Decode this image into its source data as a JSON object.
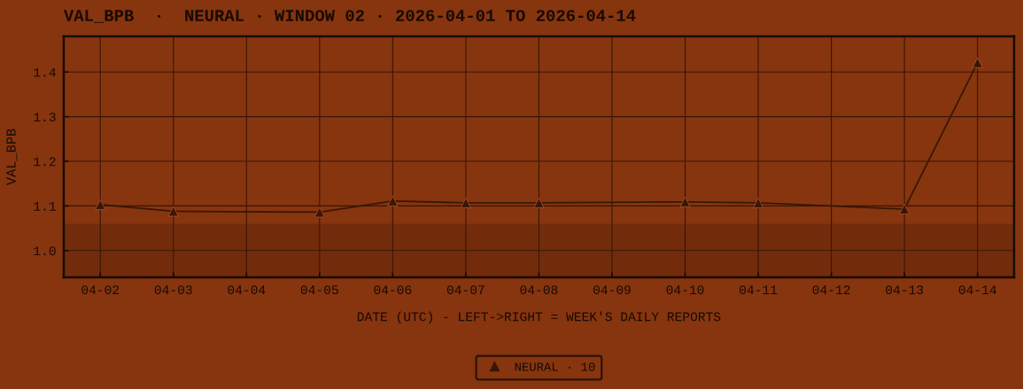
{
  "chart_data": {
    "type": "line",
    "title": "VAL_BPB  ·  NEURAL · WINDOW 02 · 2026-04-01 TO 2026-04-14",
    "xlabel": "DATE (UTC) - LEFT->RIGHT = WEEK'S DAILY REPORTS",
    "ylabel": "VAL_BPB",
    "x": [
      "2026-04-02",
      "2026-04-03",
      "2026-04-05",
      "2026-04-06",
      "2026-04-07",
      "2026-04-08",
      "2026-04-10",
      "2026-04-11",
      "2026-04-13",
      "2026-04-14"
    ],
    "series": [
      {
        "name": "NEURAL · 10",
        "color": "#3a1606",
        "values": [
          1.103,
          1.088,
          1.086,
          1.111,
          1.107,
          1.107,
          1.109,
          1.107,
          1.093,
          1.421
        ]
      }
    ],
    "xlim": [
      "2026-04-01T12:00",
      "2026-04-14T12:00"
    ],
    "xticks": [
      {
        "value": "2026-04-02",
        "label": "04-02"
      },
      {
        "value": "2026-04-03",
        "label": "04-03"
      },
      {
        "value": "2026-04-04",
        "label": "04-04"
      },
      {
        "value": "2026-04-05",
        "label": "04-05"
      },
      {
        "value": "2026-04-06",
        "label": "04-06"
      },
      {
        "value": "2026-04-07",
        "label": "04-07"
      },
      {
        "value": "2026-04-08",
        "label": "04-08"
      },
      {
        "value": "2026-04-09",
        "label": "04-09"
      },
      {
        "value": "2026-04-10",
        "label": "04-10"
      },
      {
        "value": "2026-04-11",
        "label": "04-11"
      },
      {
        "value": "2026-04-12",
        "label": "04-12"
      },
      {
        "value": "2026-04-13",
        "label": "04-13"
      },
      {
        "value": "2026-04-14",
        "label": "04-14"
      }
    ],
    "ylim": [
      0.94,
      1.48
    ],
    "yticks": [
      {
        "value": 1.0,
        "label": "1.0"
      },
      1.1,
      1.2,
      1.3,
      1.4
    ],
    "bands": [
      {
        "axis": "y",
        "from": 0.94,
        "to": 1.06,
        "color": "#722c0c"
      }
    ],
    "grid": true,
    "legend": "bottom",
    "marker": "triangle",
    "line_style": "solid"
  }
}
